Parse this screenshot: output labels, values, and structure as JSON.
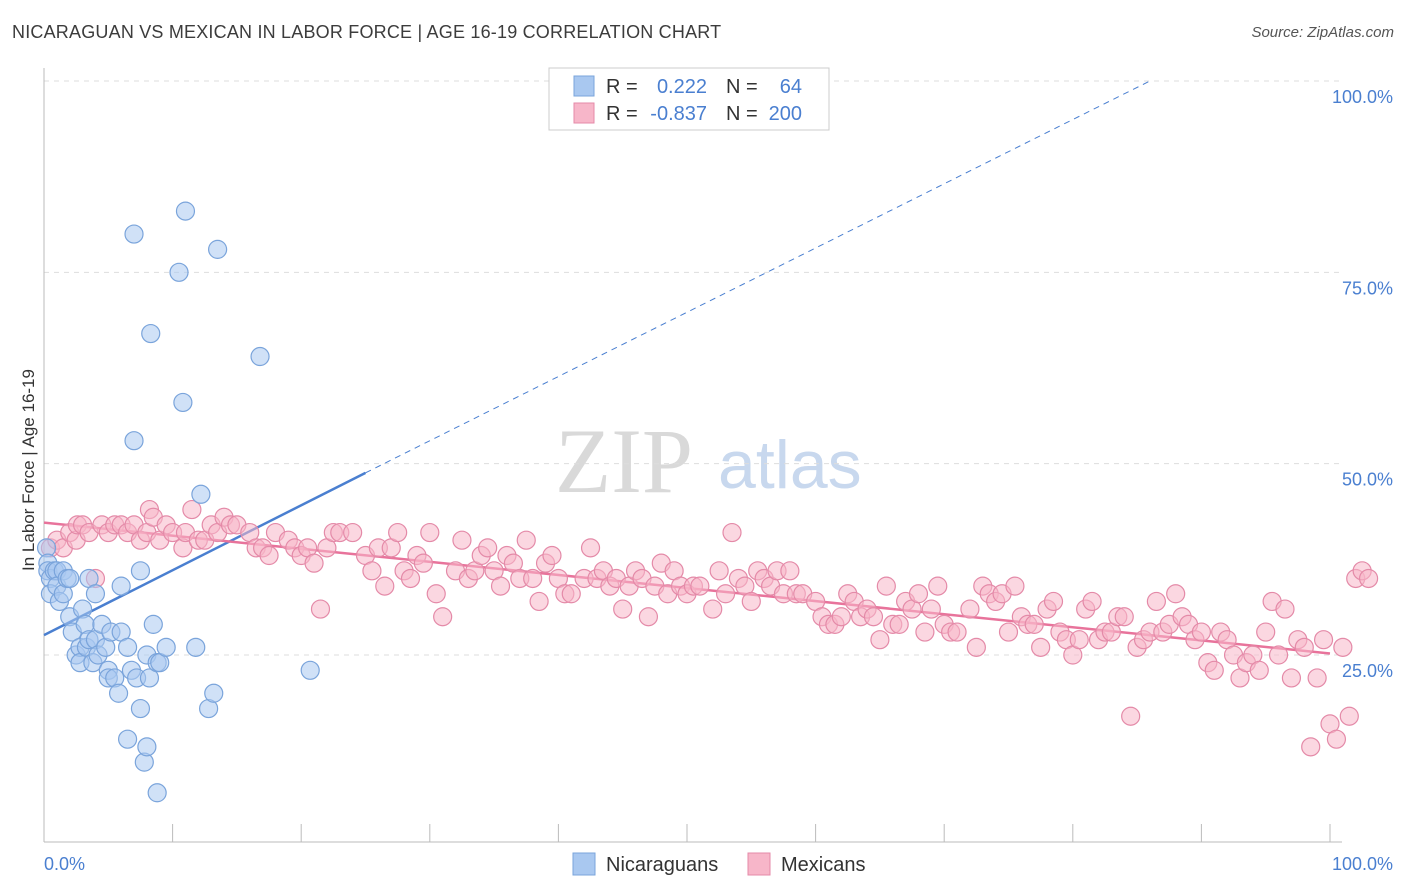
{
  "title": "NICARAGUAN VS MEXICAN IN LABOR FORCE | AGE 16-19 CORRELATION CHART",
  "source": "Source: ZipAtlas.com",
  "watermark": {
    "zip": "ZIP",
    "atlas": "atlas"
  },
  "legend_top": [
    {
      "r_label": "R =",
      "r_value": "0.222",
      "n_label": "N =",
      "n_value": "64",
      "color": "#a9c8f0"
    },
    {
      "r_label": "R =",
      "r_value": "-0.837",
      "n_label": "N =",
      "n_value": "200",
      "color": "#f7b6c9"
    }
  ],
  "colors": {
    "blue": "#4a7fd0",
    "pink": "#e8739b",
    "grid": "#dddddd",
    "blue_fill": "#a9c8f0",
    "pink_fill": "#f7b6c9"
  },
  "chart_data": {
    "type": "scatter",
    "title": "NICARAGUAN VS MEXICAN IN LABOR FORCE | AGE 16-19 CORRELATION CHART",
    "xlabel": "",
    "ylabel": "In Labor Force | Age 16-19",
    "xlim": [
      0,
      100
    ],
    "ylim": [
      0,
      105
    ],
    "x_tick_labels": [
      "0.0%",
      "100.0%"
    ],
    "y_ticks": [
      25,
      50,
      75,
      100
    ],
    "y_tick_labels": [
      "25.0%",
      "50.0%",
      "75.0%",
      "100.0%"
    ],
    "legend_bottom": [
      "Nicaraguans",
      "Mexicans"
    ],
    "series": [
      {
        "name": "Nicaraguans",
        "color": "#a9c8f0",
        "trend": {
          "x": [
            0,
            25
          ],
          "y": [
            27.6,
            48.8
          ],
          "extend_to": [
            86,
            100
          ]
        },
        "points": [
          [
            0.2,
            39
          ],
          [
            0.3,
            37
          ],
          [
            0.3,
            36
          ],
          [
            0.5,
            35
          ],
          [
            0.5,
            33
          ],
          [
            0.8,
            36
          ],
          [
            1,
            36
          ],
          [
            1,
            34
          ],
          [
            1.2,
            32
          ],
          [
            1.5,
            36
          ],
          [
            1.5,
            33
          ],
          [
            1.8,
            35
          ],
          [
            2,
            35
          ],
          [
            2,
            30
          ],
          [
            2.2,
            28
          ],
          [
            2.5,
            25
          ],
          [
            2.8,
            26
          ],
          [
            2.8,
            24
          ],
          [
            3,
            31
          ],
          [
            3.2,
            29
          ],
          [
            3.3,
            26
          ],
          [
            3.5,
            27
          ],
          [
            3.5,
            35
          ],
          [
            3.8,
            24
          ],
          [
            4,
            27
          ],
          [
            4,
            33
          ],
          [
            4.2,
            25
          ],
          [
            4.5,
            29
          ],
          [
            4.8,
            26
          ],
          [
            5,
            23
          ],
          [
            5,
            22
          ],
          [
            5.2,
            28
          ],
          [
            5.5,
            22
          ],
          [
            5.8,
            20
          ],
          [
            6,
            34
          ],
          [
            6,
            28
          ],
          [
            6.5,
            26
          ],
          [
            6.5,
            14
          ],
          [
            6.8,
            23
          ],
          [
            7,
            53
          ],
          [
            7,
            80
          ],
          [
            7.2,
            22
          ],
          [
            7.5,
            36
          ],
          [
            7.5,
            18
          ],
          [
            7.8,
            11
          ],
          [
            8,
            25
          ],
          [
            8,
            13
          ],
          [
            8.2,
            22
          ],
          [
            8.3,
            67
          ],
          [
            8.5,
            29
          ],
          [
            8.8,
            24
          ],
          [
            8.8,
            7
          ],
          [
            9,
            24
          ],
          [
            9.5,
            26
          ],
          [
            10.5,
            75
          ],
          [
            10.8,
            58
          ],
          [
            11,
            83
          ],
          [
            11.8,
            26
          ],
          [
            12.2,
            46
          ],
          [
            12.8,
            18
          ],
          [
            13.2,
            20
          ],
          [
            13.5,
            78
          ],
          [
            16.8,
            64
          ],
          [
            20.7,
            23
          ]
        ]
      },
      {
        "name": "Mexicans",
        "color": "#f7b6c9",
        "trend": {
          "x": [
            0,
            100
          ],
          "y": [
            42.3,
            25.2
          ]
        },
        "points": [
          [
            0.5,
            39
          ],
          [
            1,
            40
          ],
          [
            1.5,
            39
          ],
          [
            2,
            41
          ],
          [
            2.5,
            40
          ],
          [
            2.6,
            42
          ],
          [
            3,
            42
          ],
          [
            3.5,
            41
          ],
          [
            4,
            35
          ],
          [
            4.5,
            42
          ],
          [
            5,
            41
          ],
          [
            5.5,
            42
          ],
          [
            6,
            42
          ],
          [
            6.5,
            41
          ],
          [
            7,
            42
          ],
          [
            7.5,
            40
          ],
          [
            8,
            41
          ],
          [
            8.2,
            44
          ],
          [
            8.5,
            43
          ],
          [
            9,
            40
          ],
          [
            9.5,
            42
          ],
          [
            10,
            41
          ],
          [
            10.8,
            39
          ],
          [
            11,
            41
          ],
          [
            11.5,
            44
          ],
          [
            12,
            40
          ],
          [
            12.5,
            40
          ],
          [
            13,
            42
          ],
          [
            13.5,
            41
          ],
          [
            14,
            43
          ],
          [
            14.5,
            42
          ],
          [
            15,
            42
          ],
          [
            16,
            41
          ],
          [
            16.5,
            39
          ],
          [
            17,
            39
          ],
          [
            17.5,
            38
          ],
          [
            18,
            41
          ],
          [
            19,
            40
          ],
          [
            19.5,
            39
          ],
          [
            20,
            38
          ],
          [
            20.5,
            39
          ],
          [
            21,
            37
          ],
          [
            21.5,
            31
          ],
          [
            22,
            39
          ],
          [
            22.5,
            41
          ],
          [
            23,
            41
          ],
          [
            24,
            41
          ],
          [
            25,
            38
          ],
          [
            25.5,
            36
          ],
          [
            26,
            39
          ],
          [
            26.5,
            34
          ],
          [
            27,
            39
          ],
          [
            27.5,
            41
          ],
          [
            28,
            36
          ],
          [
            28.5,
            35
          ],
          [
            29,
            38
          ],
          [
            29.5,
            37
          ],
          [
            30,
            41
          ],
          [
            30.5,
            33
          ],
          [
            31,
            30
          ],
          [
            32,
            36
          ],
          [
            32.5,
            40
          ],
          [
            33,
            35
          ],
          [
            33.5,
            36
          ],
          [
            34,
            38
          ],
          [
            34.5,
            39
          ],
          [
            35,
            36
          ],
          [
            35.5,
            34
          ],
          [
            36,
            38
          ],
          [
            36.5,
            37
          ],
          [
            37,
            35
          ],
          [
            37.5,
            40
          ],
          [
            38,
            35
          ],
          [
            38.5,
            32
          ],
          [
            39,
            37
          ],
          [
            39.5,
            38
          ],
          [
            40,
            35
          ],
          [
            40.5,
            33
          ],
          [
            41,
            33
          ],
          [
            42,
            35
          ],
          [
            42.5,
            39
          ],
          [
            43,
            35
          ],
          [
            43.5,
            36
          ],
          [
            44,
            34
          ],
          [
            44.5,
            35
          ],
          [
            45,
            31
          ],
          [
            45.5,
            34
          ],
          [
            46,
            36
          ],
          [
            46.5,
            35
          ],
          [
            47,
            30
          ],
          [
            47.5,
            34
          ],
          [
            48,
            37
          ],
          [
            48.5,
            33
          ],
          [
            49,
            36
          ],
          [
            49.5,
            34
          ],
          [
            50,
            33
          ],
          [
            50.5,
            34
          ],
          [
            51,
            34
          ],
          [
            52,
            31
          ],
          [
            52.5,
            36
          ],
          [
            53,
            33
          ],
          [
            53.5,
            41
          ],
          [
            54,
            35
          ],
          [
            54.5,
            34
          ],
          [
            55,
            32
          ],
          [
            55.5,
            36
          ],
          [
            56,
            35
          ],
          [
            56.5,
            34
          ],
          [
            57,
            36
          ],
          [
            57.5,
            33
          ],
          [
            58,
            36
          ],
          [
            58.5,
            33
          ],
          [
            59,
            33
          ],
          [
            60,
            32
          ],
          [
            60.5,
            30
          ],
          [
            61,
            29
          ],
          [
            61.5,
            29
          ],
          [
            62,
            30
          ],
          [
            62.5,
            33
          ],
          [
            63,
            32
          ],
          [
            63.5,
            30
          ],
          [
            64,
            31
          ],
          [
            64.5,
            30
          ],
          [
            65,
            27
          ],
          [
            65.5,
            34
          ],
          [
            66,
            29
          ],
          [
            66.5,
            29
          ],
          [
            67,
            32
          ],
          [
            67.5,
            31
          ],
          [
            68,
            33
          ],
          [
            68.5,
            28
          ],
          [
            69,
            31
          ],
          [
            69.5,
            34
          ],
          [
            70,
            29
          ],
          [
            70.5,
            28
          ],
          [
            71,
            28
          ],
          [
            72,
            31
          ],
          [
            72.5,
            26
          ],
          [
            73,
            34
          ],
          [
            73.5,
            33
          ],
          [
            74,
            32
          ],
          [
            74.5,
            33
          ],
          [
            75,
            28
          ],
          [
            75.5,
            34
          ],
          [
            76,
            30
          ],
          [
            76.5,
            29
          ],
          [
            77,
            29
          ],
          [
            77.5,
            26
          ],
          [
            78,
            31
          ],
          [
            78.5,
            32
          ],
          [
            79,
            28
          ],
          [
            79.5,
            27
          ],
          [
            80,
            25
          ],
          [
            80.5,
            27
          ],
          [
            81,
            31
          ],
          [
            81.5,
            32
          ],
          [
            82,
            27
          ],
          [
            82.5,
            28
          ],
          [
            83,
            28
          ],
          [
            83.5,
            30
          ],
          [
            84,
            30
          ],
          [
            84.5,
            17
          ],
          [
            85,
            26
          ],
          [
            85.5,
            27
          ],
          [
            86,
            28
          ],
          [
            86.5,
            32
          ],
          [
            87,
            28
          ],
          [
            87.5,
            29
          ],
          [
            88,
            33
          ],
          [
            88.5,
            30
          ],
          [
            89,
            29
          ],
          [
            89.5,
            27
          ],
          [
            90,
            28
          ],
          [
            90.5,
            24
          ],
          [
            91,
            23
          ],
          [
            91.5,
            28
          ],
          [
            92,
            27
          ],
          [
            92.5,
            25
          ],
          [
            93,
            22
          ],
          [
            93.5,
            24
          ],
          [
            94,
            25
          ],
          [
            94.5,
            23
          ],
          [
            95,
            28
          ],
          [
            95.5,
            32
          ],
          [
            96,
            25
          ],
          [
            96.5,
            31
          ],
          [
            97,
            22
          ],
          [
            97.5,
            27
          ],
          [
            98,
            26
          ],
          [
            98.5,
            13
          ],
          [
            99,
            22
          ],
          [
            99.5,
            27
          ],
          [
            100,
            16
          ],
          [
            100.5,
            14
          ],
          [
            101,
            26
          ],
          [
            101.5,
            17
          ],
          [
            102,
            35
          ],
          [
            102.5,
            36
          ],
          [
            103,
            35
          ]
        ]
      }
    ],
    "legend_placement": "top-center",
    "grid": true
  }
}
